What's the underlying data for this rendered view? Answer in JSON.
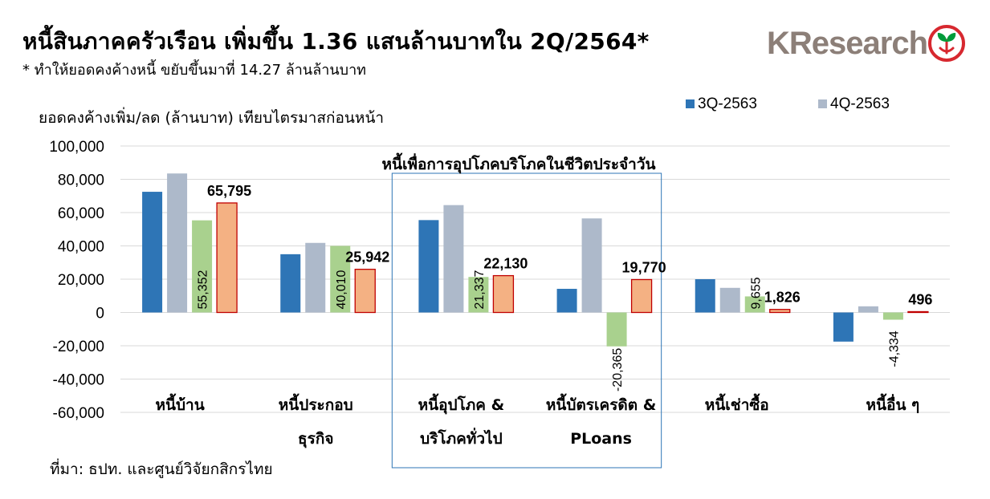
{
  "header": {
    "title": "หนี้สินภาคครัวเรือน เพิ่มขึ้น 1.36 แสนล้านบาทใน 2Q/2564*",
    "subtitle": "* ทำให้ยอดคงค้างหนี้ ขยับขึ้นมาที่ 14.27 ล้านล้านบาท",
    "logo_text": "KResearch"
  },
  "source": "ที่มา: ธปท. และศูนย์วิจัยกสิกรไทย",
  "colors": {
    "q3_2563": "#2e75b6",
    "q4_2563": "#adb9ca",
    "q1_2564": "#a9d18e",
    "q2_2564": "#f4b183",
    "q2_border": "#c00000",
    "highlight_box": "#2e75b6",
    "logo_grey": "#8c7f78",
    "logo_red": "#d7282f",
    "logo_green": "#009b3a"
  },
  "chart_data": {
    "type": "bar",
    "ylabel": "ยอดคงค้างเพิ่ม/ลด (ล้านบาท) เทียบไตรมาสก่อนหน้า",
    "ylim": [
      -60000,
      100000
    ],
    "yticks": [
      100000,
      80000,
      60000,
      40000,
      20000,
      0,
      -20000,
      -40000,
      -60000
    ],
    "ytick_labels": [
      "100,000",
      "80,000",
      "60,000",
      "40,000",
      "20,000",
      "0",
      "-20,000",
      "-40,000",
      "-60,000"
    ],
    "grid": true,
    "legend_position": "top-right",
    "categories": [
      [
        "หนี้บ้าน"
      ],
      [
        "หนี้ประกอบ",
        "ธุรกิจ"
      ],
      [
        "หนี้อุปโภค &",
        "บริโภคทั่วไป"
      ],
      [
        "หนี้บัตรเครดิต &",
        "PLoans"
      ],
      [
        "หนี้เช่าซื้อ"
      ],
      [
        "หนี้อื่น ๆ"
      ]
    ],
    "series": [
      {
        "name": "3Q-2563",
        "values": [
          72500,
          35000,
          55500,
          14200,
          20000,
          -17500
        ]
      },
      {
        "name": "4Q-2563",
        "values": [
          83500,
          41800,
          64500,
          56500,
          14800,
          3700
        ]
      },
      {
        "name": "",
        "values": [
          55352,
          40010,
          21337,
          -20365,
          9655,
          -4334
        ],
        "labels": [
          "55,352",
          "40,010",
          "21,337",
          "-20,365",
          "9,655",
          "-4,334"
        ]
      },
      {
        "name": "",
        "values": [
          65795,
          25942,
          22130,
          19770,
          1826,
          496
        ],
        "labels": [
          "65,795",
          "25,942",
          "22,130",
          "19,770",
          "1,826",
          "496"
        ]
      }
    ],
    "annotation": "หนี้เพื่อการอุปโภคบริโภคในชีวิตประจำวัน"
  }
}
